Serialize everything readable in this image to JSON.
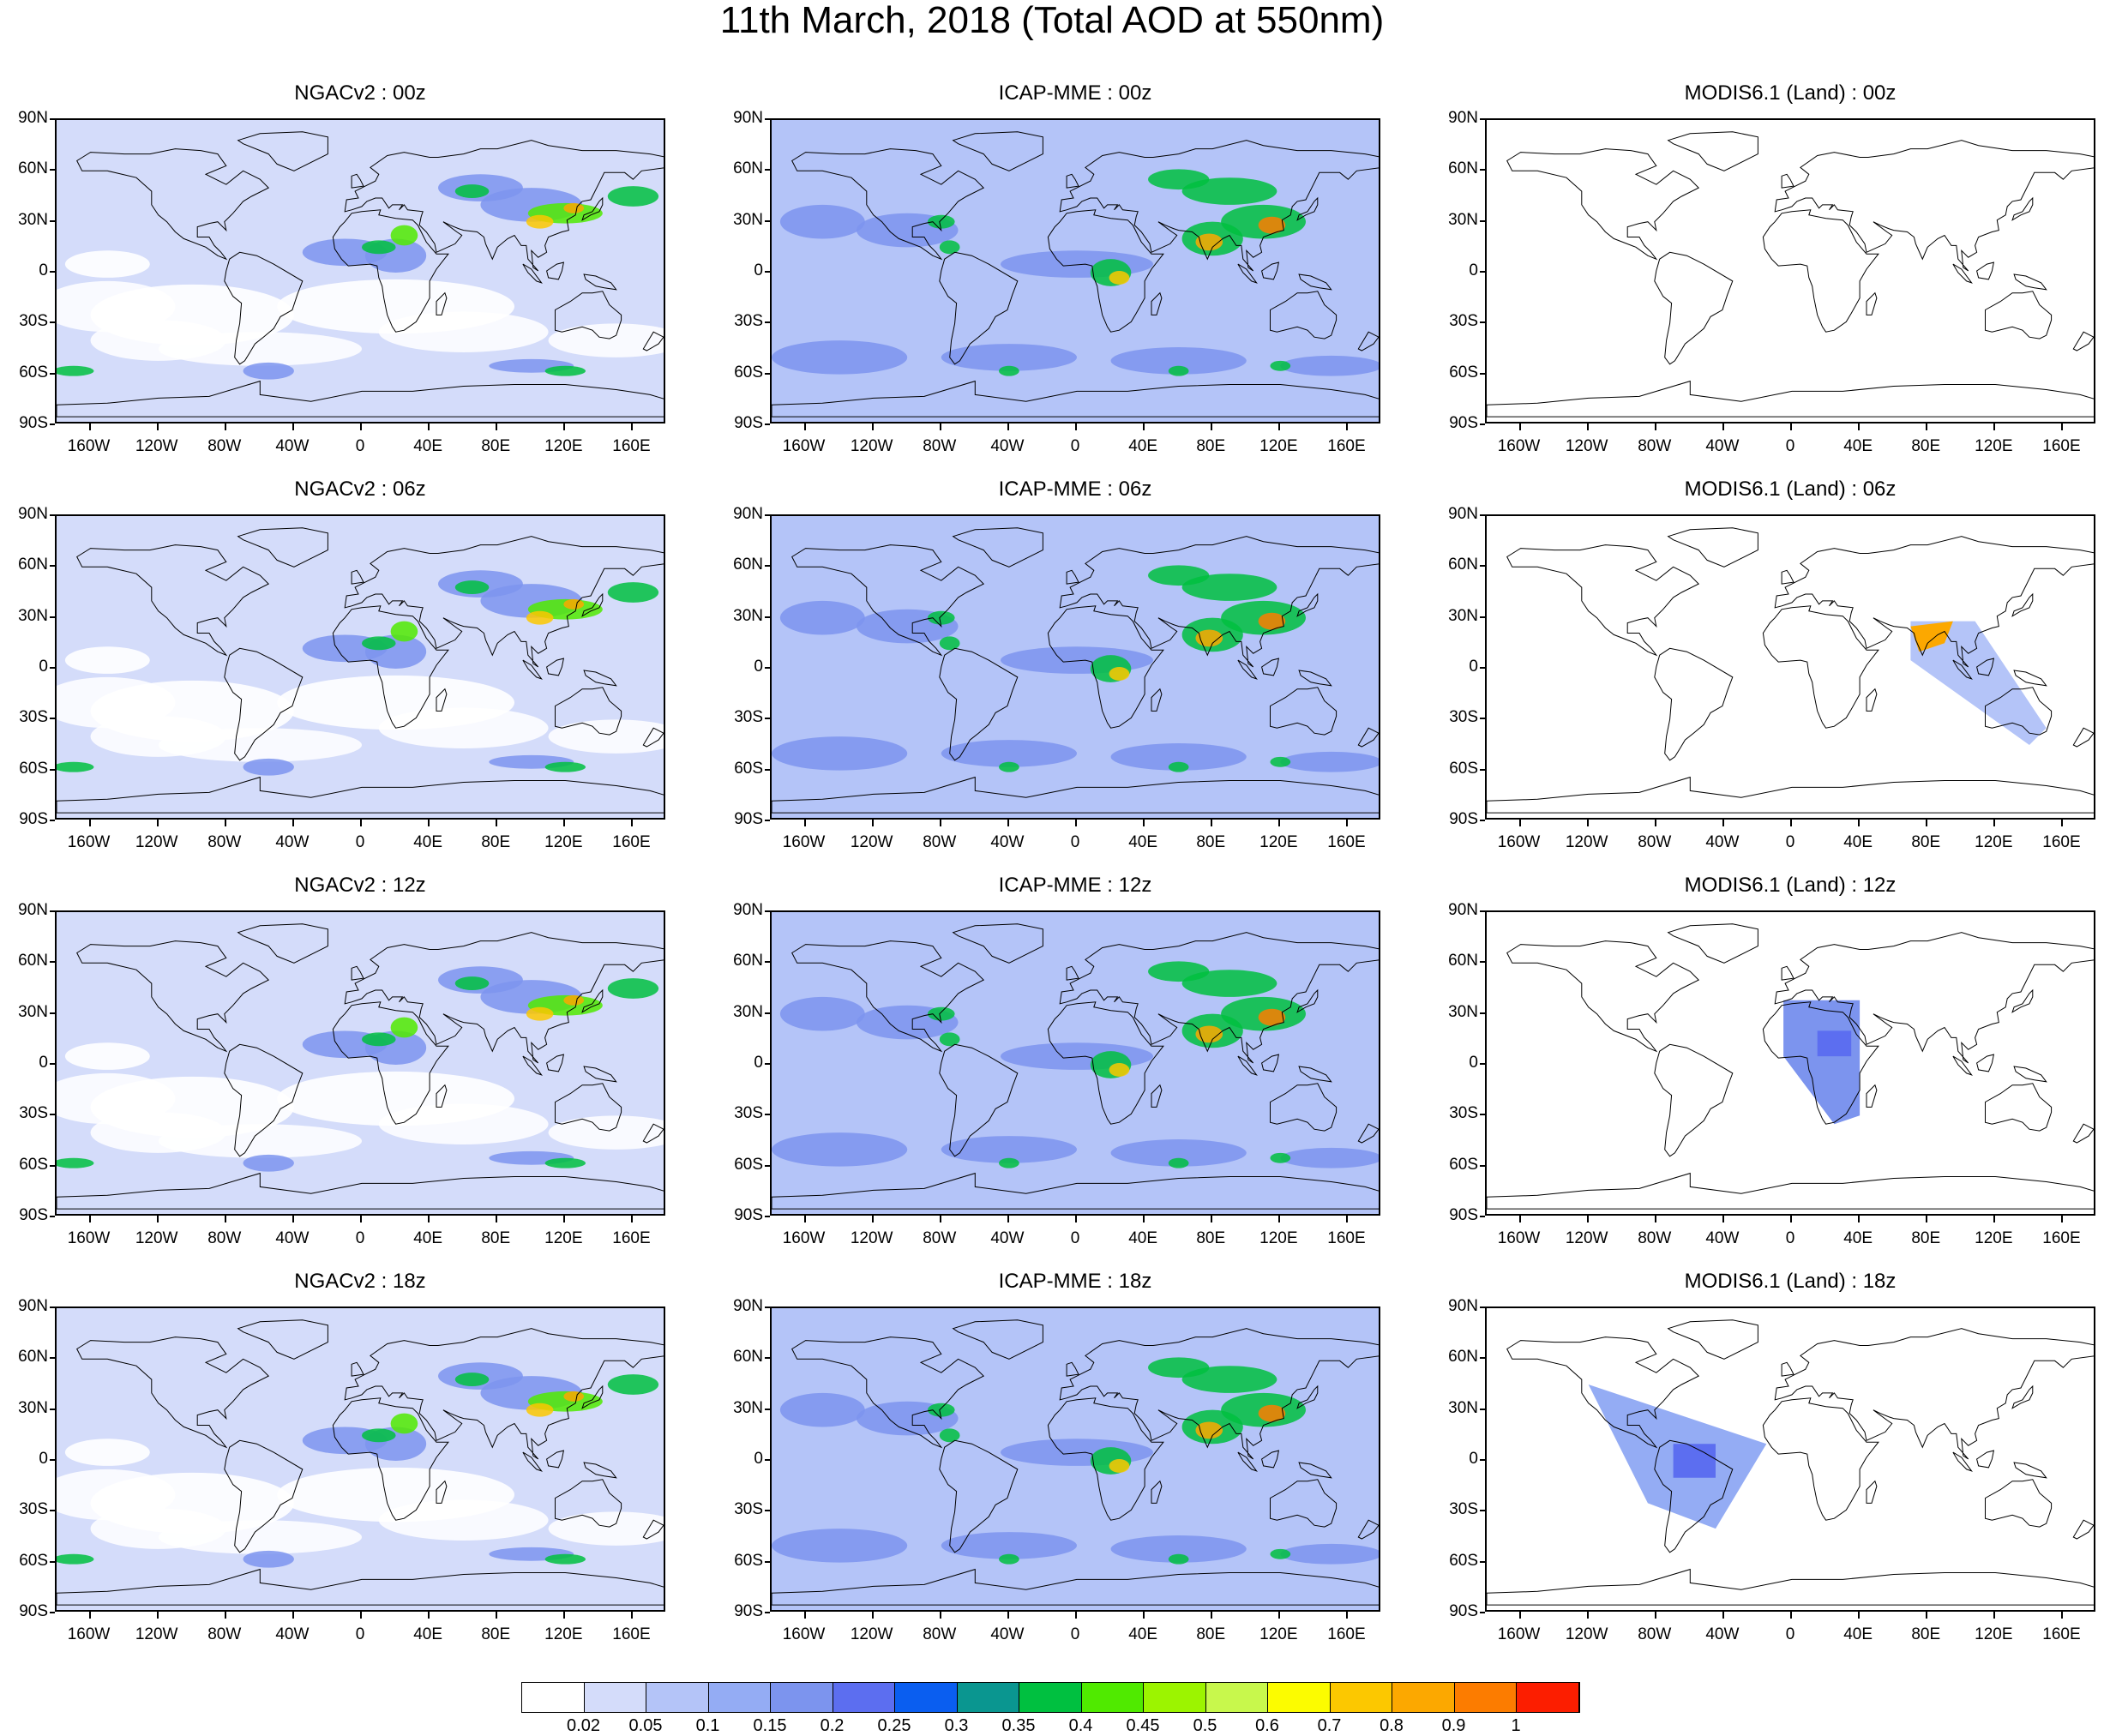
{
  "title": "11th March, 2018 (Total AOD at 550nm)",
  "lat_labels": [
    "90N",
    "60N",
    "30N",
    "0",
    "30S",
    "60S",
    "90S"
  ],
  "lon_labels": [
    "160W",
    "120W",
    "80W",
    "40W",
    "0",
    "40E",
    "80E",
    "120E",
    "160E"
  ],
  "panels": [
    {
      "title": "NGACv2 : 00z",
      "model": "ngac",
      "swath": null
    },
    {
      "title": "ICAP-MME : 00z",
      "model": "icap",
      "swath": null
    },
    {
      "title": "MODIS6.1 (Land) : 00z",
      "model": "modis",
      "swath": null
    },
    {
      "title": "NGACv2 : 06z",
      "model": "ngac",
      "swath": null
    },
    {
      "title": "ICAP-MME : 06z",
      "model": "icap",
      "swath": null
    },
    {
      "title": "MODIS6.1 (Land) : 06z",
      "model": "modis",
      "swath": "asia"
    },
    {
      "title": "NGACv2 : 12z",
      "model": "ngac",
      "swath": null
    },
    {
      "title": "ICAP-MME : 12z",
      "model": "icap",
      "swath": null
    },
    {
      "title": "MODIS6.1 (Land) : 12z",
      "model": "modis",
      "swath": "africa"
    },
    {
      "title": "NGACv2 : 18z",
      "model": "ngac",
      "swath": null
    },
    {
      "title": "ICAP-MME : 18z",
      "model": "icap",
      "swath": null
    },
    {
      "title": "MODIS6.1 (Land) : 18z",
      "model": "modis",
      "swath": "samerica"
    }
  ],
  "colorbar": {
    "colors": [
      "#ffffff",
      "#d4dcfa",
      "#b4c4f8",
      "#94acf4",
      "#7c94ee",
      "#5c6ef0",
      "#0a5ef0",
      "#0a9690",
      "#00c040",
      "#50ea00",
      "#9cf400",
      "#c8f84c",
      "#fcfc00",
      "#fcc800",
      "#fca800",
      "#fc7c00",
      "#fc1e00"
    ],
    "labels": [
      "0.02",
      "0.05",
      "0.1",
      "0.15",
      "0.2",
      "0.25",
      "0.3",
      "0.35",
      "0.4",
      "0.45",
      "0.5",
      "0.6",
      "0.7",
      "0.8",
      "0.9",
      "1"
    ]
  }
}
